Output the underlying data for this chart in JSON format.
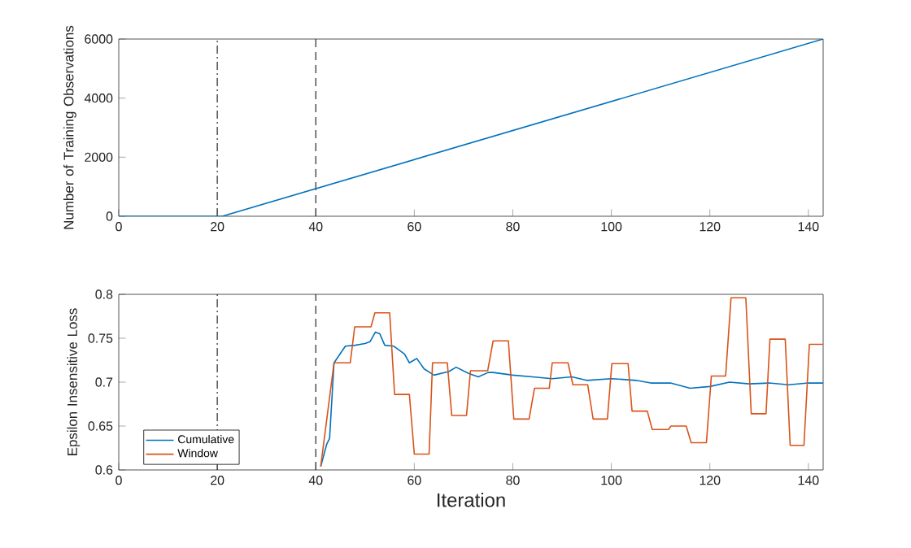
{
  "chart_data": [
    {
      "type": "line",
      "ylabel": "Number of Training Observations",
      "xlim": [
        0,
        143
      ],
      "ylim": [
        0,
        6000
      ],
      "xticks": [
        0,
        20,
        40,
        60,
        80,
        100,
        120,
        140
      ],
      "yticks": [
        0,
        2000,
        4000,
        6000
      ],
      "series": [
        {
          "color": "#0072bd",
          "x": [
            0,
            21,
            143
          ],
          "values": [
            0,
            0,
            6000
          ]
        }
      ],
      "ref_lines": [
        {
          "axis": "x",
          "value": 20,
          "color": "#262626",
          "line_style": "dashdot"
        },
        {
          "axis": "x",
          "value": 40,
          "color": "#262626",
          "line_style": "dashed"
        }
      ]
    },
    {
      "type": "line",
      "xlabel": "Iteration",
      "ylabel": "Epsilon Insensitive Loss",
      "xlim": [
        0,
        143
      ],
      "ylim": [
        0.6,
        0.8
      ],
      "xticks": [
        0,
        20,
        40,
        60,
        80,
        100,
        120,
        140
      ],
      "yticks": [
        0.6,
        0.65,
        0.7,
        0.75,
        0.8
      ],
      "legend": "bottom left",
      "series": [
        {
          "name": "Cumulative",
          "color": "#0072bd",
          "x": [
            41,
            42.2,
            42.8,
            43.7,
            46,
            48,
            50,
            51,
            52.1,
            53,
            54,
            55.8,
            58,
            59,
            60.5,
            62,
            64,
            67,
            68.5,
            71,
            73,
            75,
            76,
            80,
            84,
            88,
            92,
            95,
            100,
            105,
            108,
            112,
            116,
            120,
            124,
            128,
            132,
            136,
            140,
            143
          ],
          "values": [
            0.604,
            0.629,
            0.636,
            0.722,
            0.741,
            0.742,
            0.744,
            0.746,
            0.757,
            0.755,
            0.742,
            0.741,
            0.732,
            0.722,
            0.727,
            0.715,
            0.708,
            0.712,
            0.717,
            0.71,
            0.706,
            0.711,
            0.711,
            0.708,
            0.706,
            0.704,
            0.706,
            0.702,
            0.704,
            0.702,
            0.699,
            0.699,
            0.693,
            0.695,
            0.7,
            0.698,
            0.699,
            0.697,
            0.699,
            0.699
          ]
        },
        {
          "name": "Window",
          "color": "#d95319",
          "x": [
            41,
            43.7,
            47,
            47.9,
            51.2,
            52,
            55,
            56,
            59,
            60,
            63,
            63.7,
            66.7,
            67.6,
            70.6,
            71.4,
            74.9,
            76,
            79.1,
            80.2,
            83.3,
            84.4,
            87.4,
            88,
            91.2,
            92.2,
            95.2,
            96.3,
            99.2,
            100.1,
            103.4,
            104.2,
            107.3,
            108.3,
            111.6,
            112.1,
            115.2,
            116.2,
            119.3,
            120.3,
            123.2,
            124.3,
            127.3,
            128.4,
            131.4,
            132.2,
            135.3,
            136.3,
            139.1,
            140.2,
            143
          ],
          "values": [
            0.604,
            0.722,
            0.722,
            0.763,
            0.763,
            0.779,
            0.779,
            0.686,
            0.686,
            0.618,
            0.618,
            0.722,
            0.722,
            0.662,
            0.662,
            0.713,
            0.713,
            0.747,
            0.747,
            0.658,
            0.658,
            0.693,
            0.693,
            0.722,
            0.722,
            0.697,
            0.697,
            0.658,
            0.658,
            0.721,
            0.721,
            0.667,
            0.667,
            0.646,
            0.646,
            0.65,
            0.65,
            0.631,
            0.631,
            0.707,
            0.707,
            0.796,
            0.796,
            0.664,
            0.664,
            0.749,
            0.749,
            0.628,
            0.628,
            0.743,
            0.743
          ]
        }
      ],
      "ref_lines": [
        {
          "axis": "x",
          "value": 20,
          "color": "#262626",
          "line_style": "dashdot"
        },
        {
          "axis": "x",
          "value": 40,
          "color": "#262626",
          "line_style": "dashed"
        }
      ]
    }
  ]
}
